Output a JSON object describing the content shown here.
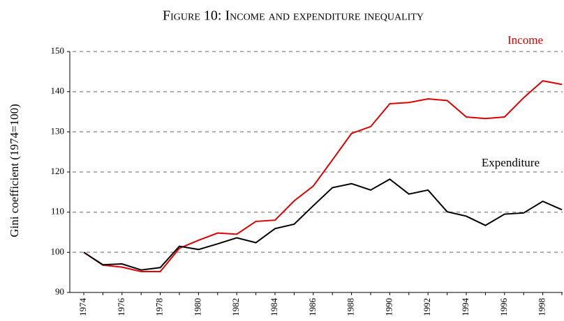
{
  "chart_data": {
    "type": "line",
    "title": "Figure 10: Income and expenditure inequality",
    "y_label": "Gini coefficient (1974=100)",
    "categories": [
      "1974",
      null,
      "1976",
      null,
      "1978",
      null,
      "1980",
      null,
      "1982",
      null,
      "1984",
      null,
      "1986",
      null,
      "1988",
      null,
      "1990",
      null,
      "1992",
      null,
      "1994",
      null,
      "1996",
      null,
      "1998",
      null
    ],
    "series": [
      {
        "name": "Income",
        "color": "#e00000",
        "values": [
          100,
          96.8,
          96.3,
          95.2,
          95.2,
          101,
          103,
          104.8,
          104.5,
          107.7,
          108,
          112.8,
          116.5,
          123,
          129.6,
          131.3,
          137,
          137.3,
          138.2,
          137.8,
          133.7,
          133.3,
          133.7,
          138.5,
          142.7,
          141.8
        ]
      },
      {
        "name": "Expenditure",
        "color": "#000000",
        "values": [
          100,
          96.9,
          97.1,
          95.6,
          96.2,
          101.5,
          100.7,
          102.1,
          103.6,
          102.4,
          105.9,
          107,
          111.6,
          116.1,
          117.1,
          115.5,
          118.2,
          114.5,
          115.5,
          110.1,
          109,
          106.7,
          109.5,
          109.8,
          112.7,
          110.6
        ]
      }
    ],
    "ylim": [
      90,
      150
    ],
    "yticks": [
      90,
      100,
      110,
      120,
      130,
      140,
      150
    ],
    "grid": true
  }
}
